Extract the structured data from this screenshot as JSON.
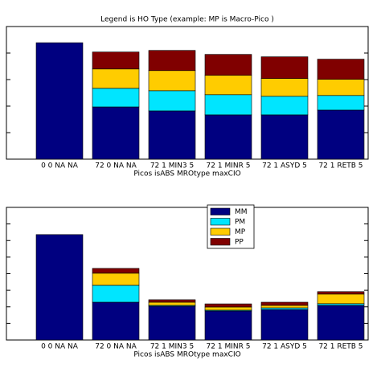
{
  "chart_data": [
    {
      "type": "bar",
      "stacked": true,
      "title": "Legend is HO Type (example: MP is Macro-Pico )",
      "xlabel": "Picos  isABS  MROtype  maxCIO",
      "categories": [
        "0  0  NA  NA",
        "72  0  NA  NA",
        "72  1 MIN3  5",
        "72  1 MINR  5",
        "72  1 ASYD  5",
        "72  1 RETB  5"
      ],
      "series": [
        {
          "name": "MM",
          "color": "#000080",
          "values": [
            4.39,
            1.97,
            1.82,
            1.67,
            1.67,
            1.85
          ]
        },
        {
          "name": "PM",
          "color": "#00e5ff",
          "values": [
            null,
            0.7,
            0.76,
            0.76,
            0.7,
            0.55
          ]
        },
        {
          "name": "MP",
          "color": "#ffcc00",
          "values": [
            null,
            0.73,
            0.76,
            0.73,
            0.67,
            0.61
          ]
        },
        {
          "name": "PP",
          "color": "#800000",
          "values": [
            null,
            0.64,
            0.76,
            0.79,
            0.82,
            0.76
          ]
        }
      ],
      "ylim": [
        0,
        5
      ],
      "yticks": [
        0,
        1,
        2,
        3,
        4,
        5
      ],
      "legend": false
    },
    {
      "type": "bar",
      "stacked": true,
      "xlabel": "Picos  isABS  MROtype  maxCIO",
      "categories": [
        "0  0  NA  NA",
        "72  0  NA  NA",
        "72  1 MIN3  5",
        "72  1 MINR  5",
        "72  1 ASYD  5",
        "72  1 RETB  5"
      ],
      "series": [
        {
          "name": "MM",
          "color": "#000080",
          "values": [
            6.36,
            2.28,
            2.04,
            1.75,
            1.84,
            2.09
          ]
        },
        {
          "name": "PM",
          "color": "#00e5ff",
          "values": [
            null,
            1.02,
            0.05,
            0.05,
            0.1,
            0.1
          ]
        },
        {
          "name": "MP",
          "color": "#ffcc00",
          "values": [
            null,
            0.73,
            0.19,
            0.19,
            0.15,
            0.58
          ]
        },
        {
          "name": "PP",
          "color": "#800000",
          "values": [
            null,
            0.29,
            0.15,
            0.19,
            0.19,
            0.15
          ]
        }
      ],
      "ylim": [
        0,
        8
      ],
      "yticks": [
        0,
        1,
        2,
        3,
        4,
        5,
        6,
        7,
        8
      ],
      "legend": true
    }
  ]
}
